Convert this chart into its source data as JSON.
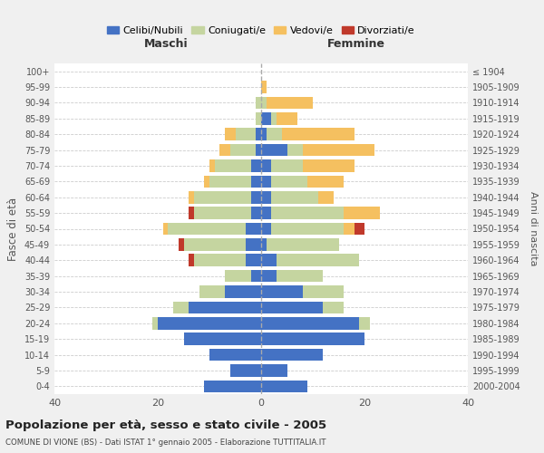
{
  "age_groups": [
    "0-4",
    "5-9",
    "10-14",
    "15-19",
    "20-24",
    "25-29",
    "30-34",
    "35-39",
    "40-44",
    "45-49",
    "50-54",
    "55-59",
    "60-64",
    "65-69",
    "70-74",
    "75-79",
    "80-84",
    "85-89",
    "90-94",
    "95-99",
    "100+"
  ],
  "birth_years": [
    "2000-2004",
    "1995-1999",
    "1990-1994",
    "1985-1989",
    "1980-1984",
    "1975-1979",
    "1970-1974",
    "1965-1969",
    "1960-1964",
    "1955-1959",
    "1950-1954",
    "1945-1949",
    "1940-1944",
    "1935-1939",
    "1930-1934",
    "1925-1929",
    "1920-1924",
    "1915-1919",
    "1910-1914",
    "1905-1909",
    "≤ 1904"
  ],
  "colors": {
    "celibi": "#4472c4",
    "coniugati": "#c5d5a0",
    "vedovi": "#f5c060",
    "divorziati": "#c0392b"
  },
  "maschi": {
    "celibi": [
      11,
      6,
      10,
      15,
      20,
      14,
      7,
      2,
      3,
      3,
      3,
      2,
      2,
      2,
      2,
      1,
      1,
      0,
      0,
      0,
      0
    ],
    "coniugati": [
      0,
      0,
      0,
      0,
      1,
      3,
      5,
      5,
      10,
      12,
      15,
      11,
      11,
      8,
      7,
      5,
      4,
      1,
      1,
      0,
      0
    ],
    "vedovi": [
      0,
      0,
      0,
      0,
      0,
      0,
      0,
      0,
      0,
      0,
      1,
      0,
      1,
      1,
      1,
      2,
      2,
      0,
      0,
      0,
      0
    ],
    "divorziati": [
      0,
      0,
      0,
      0,
      0,
      0,
      0,
      0,
      1,
      1,
      0,
      1,
      0,
      0,
      0,
      0,
      0,
      0,
      0,
      0,
      0
    ]
  },
  "femmine": {
    "celibi": [
      9,
      5,
      12,
      20,
      19,
      12,
      8,
      3,
      3,
      1,
      2,
      2,
      2,
      2,
      2,
      5,
      1,
      2,
      0,
      0,
      0
    ],
    "coniugati": [
      0,
      0,
      0,
      0,
      2,
      4,
      8,
      9,
      16,
      14,
      14,
      14,
      9,
      7,
      6,
      3,
      3,
      1,
      1,
      0,
      0
    ],
    "vedovi": [
      0,
      0,
      0,
      0,
      0,
      0,
      0,
      0,
      0,
      0,
      2,
      7,
      3,
      7,
      10,
      14,
      14,
      4,
      9,
      1,
      0
    ],
    "divorziati": [
      0,
      0,
      0,
      0,
      0,
      0,
      0,
      0,
      0,
      0,
      2,
      0,
      0,
      0,
      0,
      0,
      0,
      0,
      0,
      0,
      0
    ]
  },
  "title": "Popolazione per età, sesso e stato civile - 2005",
  "subtitle": "COMUNE DI VIONE (BS) - Dati ISTAT 1° gennaio 2005 - Elaborazione TUTTITALIA.IT",
  "xlabel_left": "Maschi",
  "xlabel_right": "Femmine",
  "ylabel_left": "Fasce di età",
  "ylabel_right": "Anni di nascita",
  "xlim": 40,
  "legend_labels": [
    "Celibi/Nubili",
    "Coniugati/e",
    "Vedovi/e",
    "Divorziati/e"
  ],
  "bg_color": "#f0f0f0",
  "plot_bg": "#ffffff"
}
